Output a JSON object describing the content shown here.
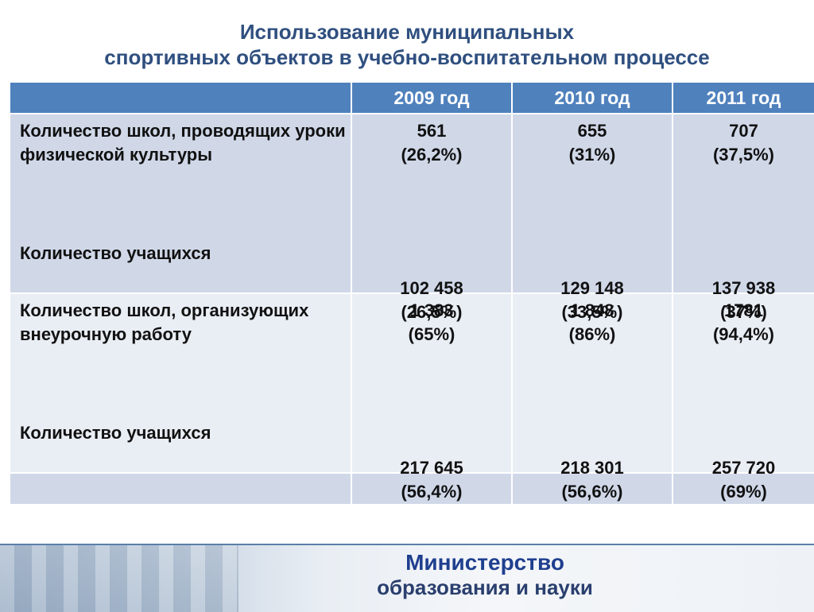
{
  "title": {
    "line1": "Использование муниципальных",
    "line2": "спортивных объектов в учебно-воспитательном процессе"
  },
  "table": {
    "columns": [
      "2009 год",
      "2010 год",
      "2011 год"
    ],
    "rows": [
      {
        "label_top": "Количество школ, проводящих уроки физической культуры",
        "label_bottom": "Количество учащихся",
        "cells": [
          {
            "top_value": "561",
            "top_pct": "(26,2%)",
            "bottom_value": "102 458",
            "bottom_pct": "(26,5%)"
          },
          {
            "top_value": "655",
            "top_pct": "(31%)",
            "bottom_value": "129 148",
            "bottom_pct": "(33,5%)"
          },
          {
            "top_value": "707",
            "top_pct": "(37,5%)",
            "bottom_value": "137 938",
            "bottom_pct": "(37%)"
          }
        ]
      },
      {
        "label_top": "Количество школ, организующих внеурочную работу",
        "label_bottom": "Количество учащихся",
        "cells": [
          {
            "top_value": "1 383",
            "top_pct": "(65%)",
            "bottom_value": "217 645",
            "bottom_pct": "(56,4%)"
          },
          {
            "top_value": "1 848",
            "top_pct": "(86%)",
            "bottom_value": "218 301",
            "bottom_pct": "(56,6%)"
          },
          {
            "top_value": "1781",
            "top_pct": "(94,4%)",
            "bottom_value": "257 720",
            "bottom_pct": "(69%)"
          }
        ]
      }
    ]
  },
  "footer": {
    "ministry_line1": "Министерство",
    "ministry_line2": "образования и науки"
  },
  "colors": {
    "header_bg": "#4f81bd",
    "band_a": "#d0d8e8",
    "band_b": "#e9edf4",
    "title": "#2f4f7f",
    "ministry": "#1f3f8f"
  }
}
